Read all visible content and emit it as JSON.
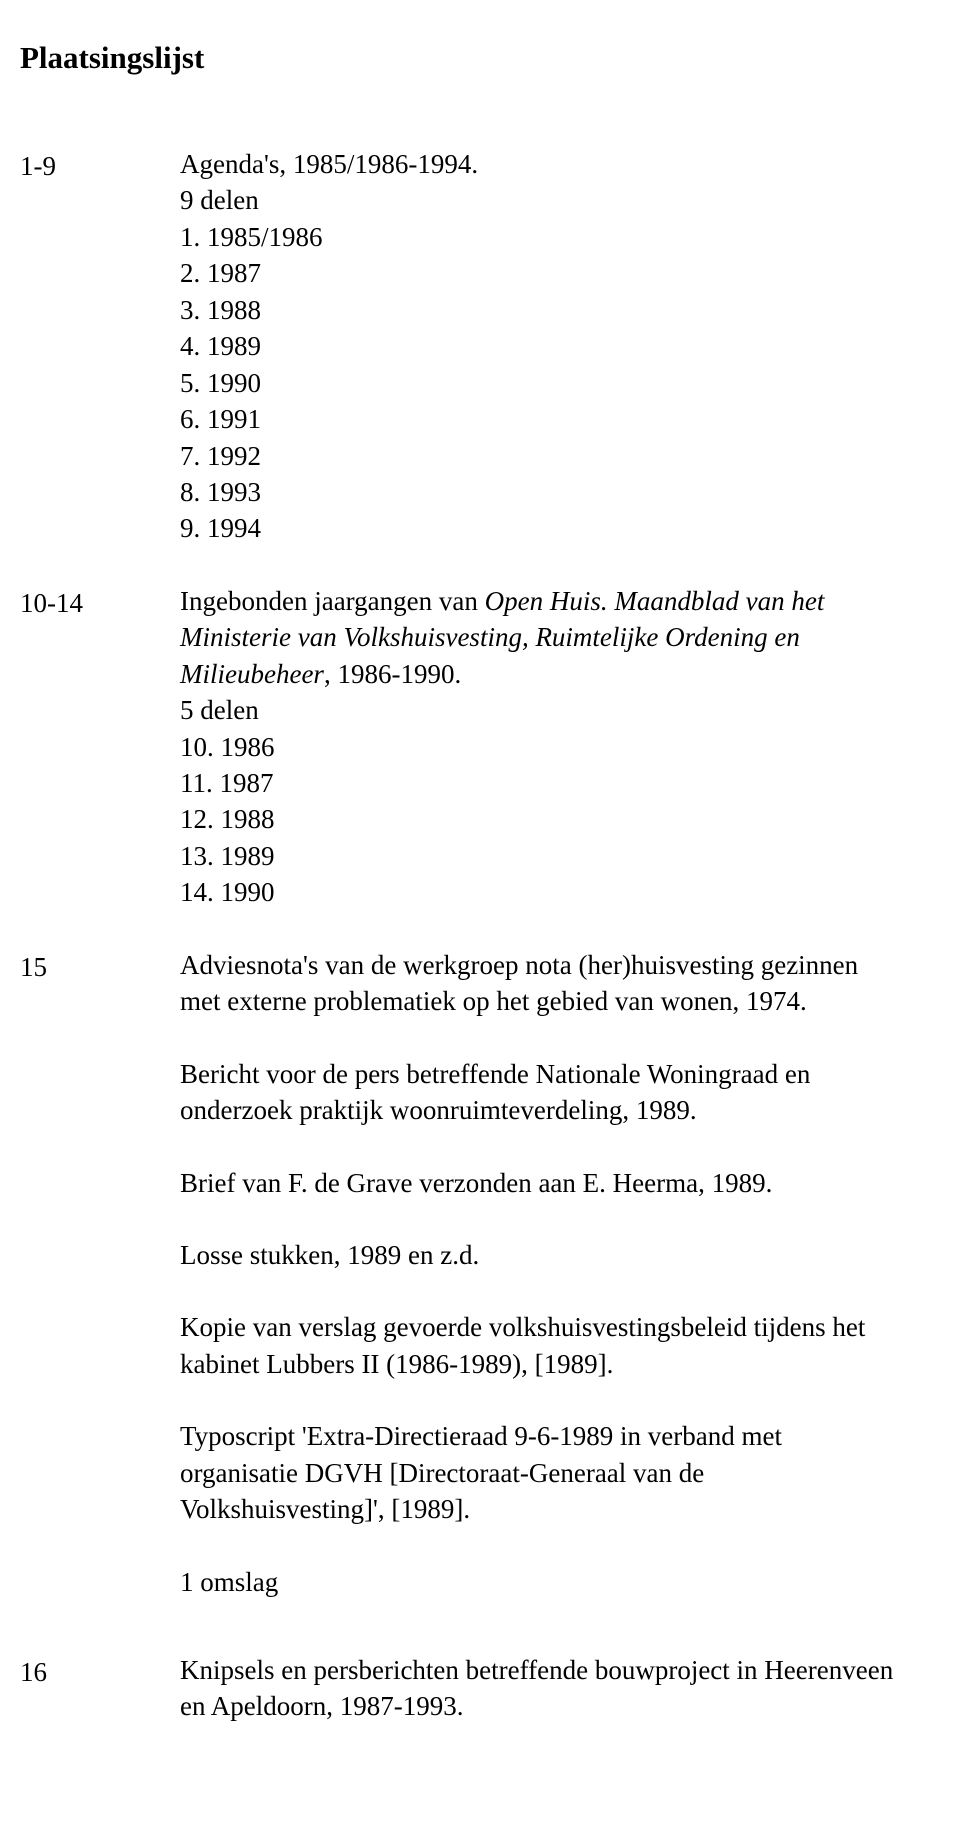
{
  "title": "Plaatsingslijst",
  "entries": {
    "e1": {
      "num": "1-9",
      "line1_a": "Agenda's, 1985/1986-1994.",
      "line2": "9 delen",
      "list": [
        "1. 1985/1986",
        "2. 1987",
        "3. 1988",
        "4. 1989",
        "5. 1990",
        "6. 1991",
        "7. 1992",
        "8. 1993",
        "9. 1994"
      ]
    },
    "e2": {
      "num": "10-14",
      "line1_a": "Ingebonden jaargangen van ",
      "line1_i": "Open Huis. Maandblad van het Ministerie van Volkshuisvesting, Ruimtelijke Ordening en Milieubeheer",
      "line1_b": ", 1986-1990.",
      "line2": "5 delen",
      "list": [
        "10. 1986",
        "11. 1987",
        "12. 1988",
        "13. 1989",
        "14. 1990"
      ]
    },
    "e3": {
      "num": "15",
      "p1": "Adviesnota's van de werkgroep nota (her)huisvesting gezinnen met externe problematiek op het gebied van wonen, 1974.",
      "p2": "Bericht voor de pers betreffende Nationale Woningraad en onderzoek praktijk woonruimteverdeling, 1989.",
      "p3": "Brief van F. de Grave verzonden aan E. Heerma, 1989.",
      "p4": "Losse stukken, 1989 en z.d.",
      "p5": "Kopie van verslag gevoerde volkshuisvestingsbeleid tijdens het kabinet Lubbers II (1986-1989), [1989].",
      "p6": "Typoscript 'Extra-Directieraad 9-6-1989 in verband met organisatie DGVH [Directoraat-Generaal van de Volkshuisvesting]', [1989].",
      "p7": "1 omslag"
    },
    "e4": {
      "num": "16",
      "p1": "Knipsels en persberichten betreffende bouwproject in Heerenveen en Apeldoorn, 1987-1993."
    }
  }
}
